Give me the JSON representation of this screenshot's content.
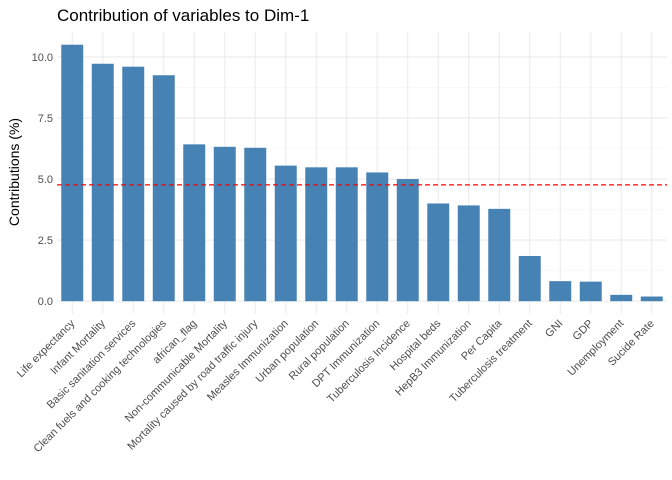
{
  "chart_data": {
    "type": "bar",
    "title": "Contribution of variables to Dim-1",
    "xlabel": "",
    "ylabel": "Contributions (%)",
    "categories": [
      "Life expectancy",
      "Infant Mortality",
      "Basic sanitation services",
      "Clean fuels and cooking technologies",
      "african_flag",
      "Non-communicable Mortality",
      "Mortality caused by road traffic injury",
      "Measles Immunization",
      "Urban population",
      "Rural population",
      "DPT Immunization",
      "Tuberculosis Incidence",
      "Hospital beds",
      "HepB3 Immunization",
      "Per Capita",
      "Tuberculosis treatment",
      "GNI",
      "GDP",
      "Unemployment",
      "Sucide Rate"
    ],
    "values": [
      10.5,
      9.72,
      9.6,
      9.25,
      6.42,
      6.32,
      6.28,
      5.55,
      5.48,
      5.48,
      5.27,
      5.0,
      4.0,
      3.92,
      3.78,
      1.85,
      0.82,
      0.8,
      0.26,
      0.19
    ],
    "ylim": [
      -0.525,
      11.02
    ],
    "yticks": [
      0,
      2.5,
      5,
      7.5,
      10
    ],
    "ytick_labels": [
      "0.0",
      "2.5",
      "5.0",
      "7.5",
      "10.0"
    ],
    "reference_line": 4.76,
    "grid": true,
    "colors": {
      "bar": "#4682b4",
      "reference_line": "#ff0000",
      "grid_major": "#ebebeb",
      "grid_minor": "#f5f5f5"
    }
  }
}
